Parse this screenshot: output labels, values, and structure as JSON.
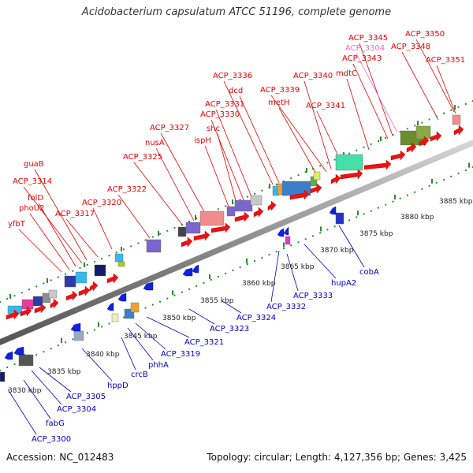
{
  "title": "Acidobacterium capsulatum ATCC 51196, complete genome",
  "footer": {
    "accession": "Accession: NC_012483",
    "summary": "Topology: circular; Length: 4,127,356 bp; Genes: 3,425"
  },
  "colors": {
    "forward_label": "#ee0000",
    "reverse_label": "#0000cc",
    "highlight_label": "#ee66cc",
    "backbone": "#8c8c8c",
    "tick": "#2a8a2a"
  },
  "scale": {
    "ticks": [
      "3830 kbp",
      "3835 kbp",
      "3840 kbp",
      "3845 kbp",
      "3850 kbp",
      "3855 kbp",
      "3860 kbp",
      "3865 kbp",
      "3870 kbp",
      "3875 kbp",
      "3880 kbp",
      "3885 kbp"
    ]
  },
  "forward_labels": [
    "yfbT",
    "phoU2",
    "folD",
    "ACP_3314",
    "guaB",
    "ACP_3317",
    "ACP_3320",
    "ACP_3322",
    "ACP_3325",
    "nusA",
    "ACP_3327",
    "ispH",
    "shc",
    "ACP_3330",
    "ACP_3331",
    "ACP_3336",
    "dcd",
    "metH",
    "ACP_3339",
    "ACP_3340",
    "ACP_3341",
    "mdtC",
    "ACP_3343",
    "ACP_3345",
    "ACP_3304",
    "ACP_3348",
    "ACP_3350",
    "ACP_3351"
  ],
  "reverse_labels": [
    "ACP_3300",
    "fabG",
    "ACP_3304",
    "ACP_3305",
    "hppD",
    "crcB",
    "phhA",
    "ACP_3319",
    "ACP_3321",
    "ACP_3323",
    "ACP_3324",
    "ACP_3332",
    "ACP_3333",
    "hupA2",
    "cobA"
  ]
}
